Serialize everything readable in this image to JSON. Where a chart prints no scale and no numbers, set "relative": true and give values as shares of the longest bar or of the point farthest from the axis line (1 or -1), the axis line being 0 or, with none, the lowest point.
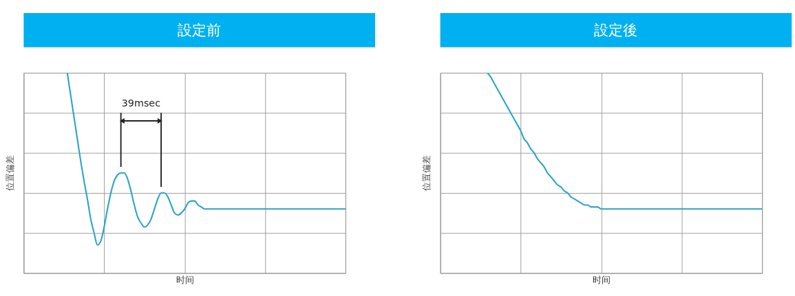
{
  "chart_data": [
    {
      "type": "line",
      "title": "設定前",
      "xlabel": "时间",
      "ylabel": "位置偏差",
      "relative": true,
      "grid": true,
      "color": "#2aa5c8",
      "annotations": [
        "39msec"
      ],
      "categories": [
        null,
        null,
        null,
        null,
        null,
        null,
        null,
        null,
        null,
        null,
        null,
        null,
        null,
        null,
        null,
        null,
        null,
        null,
        null,
        null,
        null,
        null,
        null,
        null,
        null,
        null,
        null,
        null,
        null,
        null,
        null,
        null,
        null,
        null,
        null,
        null,
        null,
        null,
        null,
        null,
        null,
        null,
        null,
        null,
        null,
        null,
        null,
        null,
        null,
        null,
        null,
        null,
        null,
        null,
        null,
        null,
        null,
        null,
        null,
        null,
        null,
        null,
        null,
        null,
        null,
        null,
        null,
        null,
        null,
        null,
        null,
        null,
        null,
        null,
        null,
        null,
        null,
        null,
        null,
        null,
        null,
        null,
        null,
        null,
        null,
        null,
        null,
        null,
        null,
        null,
        null,
        null,
        null,
        null,
        null,
        null,
        null
      ],
      "values": [
        null,
        null,
        null,
        null,
        null,
        null,
        null,
        null,
        null,
        null,
        null,
        null,
        null,
        1.0,
        0.89,
        0.78,
        0.67,
        0.56,
        0.46,
        0.37,
        0.27,
        0.2,
        0.14,
        0.16,
        0.23,
        0.32,
        0.4,
        0.46,
        0.49,
        0.5,
        0.5,
        0.47,
        0.41,
        0.34,
        0.28,
        0.25,
        0.23,
        0.24,
        0.27,
        0.32,
        0.37,
        0.4,
        0.4,
        0.38,
        0.34,
        0.3,
        0.29,
        0.3,
        0.32,
        0.35,
        0.36,
        0.36,
        0.34,
        0.33,
        0.32,
        0.32,
        0.32,
        0.32,
        0.32,
        0.32,
        0.32,
        0.32,
        0.32,
        0.32,
        0.32,
        0.32,
        0.32,
        0.32,
        0.32,
        0.32,
        0.32,
        0.32,
        0.32,
        0.32,
        0.32,
        0.32,
        0.32,
        0.32,
        0.32,
        0.32,
        0.32,
        0.32,
        0.32,
        0.32,
        0.32,
        0.32,
        0.32,
        0.32,
        0.32,
        0.32,
        0.32,
        0.32,
        0.32,
        0.32,
        0.32,
        0.32,
        0.32
      ]
    },
    {
      "type": "line",
      "title": "設定後",
      "xlabel": "时间",
      "ylabel": "位置偏差",
      "relative": true,
      "grid": true,
      "color": "#2aa5c8",
      "categories": [
        null,
        null,
        null,
        null,
        null,
        null,
        null,
        null,
        null,
        null,
        null,
        null,
        null,
        null,
        null,
        null,
        null,
        null,
        null,
        null,
        null,
        null,
        null,
        null,
        null,
        null,
        null,
        null,
        null,
        null,
        null,
        null,
        null,
        null,
        null,
        null,
        null,
        null,
        null,
        null,
        null,
        null,
        null,
        null,
        null,
        null,
        null,
        null,
        null,
        null,
        null,
        null,
        null,
        null,
        null,
        null,
        null,
        null,
        null,
        null,
        null,
        null,
        null,
        null,
        null,
        null,
        null,
        null,
        null,
        null,
        null,
        null,
        null,
        null,
        null,
        null,
        null,
        null,
        null,
        null,
        null,
        null,
        null,
        null,
        null,
        null,
        null,
        null,
        null,
        null,
        null,
        null,
        null,
        null,
        null,
        null,
        null
      ],
      "values": [
        null,
        null,
        null,
        null,
        null,
        null,
        null,
        null,
        null,
        null,
        null,
        null,
        null,
        null,
        1.0,
        0.98,
        0.95,
        0.92,
        0.89,
        0.86,
        0.83,
        0.8,
        0.77,
        0.74,
        0.71,
        0.67,
        0.65,
        0.62,
        0.6,
        0.57,
        0.55,
        0.53,
        0.5,
        0.48,
        0.46,
        0.44,
        0.43,
        0.41,
        0.4,
        0.38,
        0.37,
        0.36,
        0.35,
        0.34,
        0.34,
        0.33,
        0.33,
        0.33,
        0.32,
        0.32,
        0.32,
        0.32,
        0.32,
        0.32,
        0.32,
        0.32,
        0.32,
        0.32,
        0.32,
        0.32,
        0.32,
        0.32,
        0.32,
        0.32,
        0.32,
        0.32,
        0.32,
        0.32,
        0.32,
        0.32,
        0.32,
        0.32,
        0.32,
        0.32,
        0.32,
        0.32,
        0.32,
        0.32,
        0.32,
        0.32,
        0.32,
        0.32,
        0.32,
        0.32,
        0.32,
        0.32,
        0.32,
        0.32,
        0.32,
        0.32,
        0.32,
        0.32,
        0.32,
        0.32,
        0.32,
        0.32,
        0.32
      ]
    }
  ]
}
